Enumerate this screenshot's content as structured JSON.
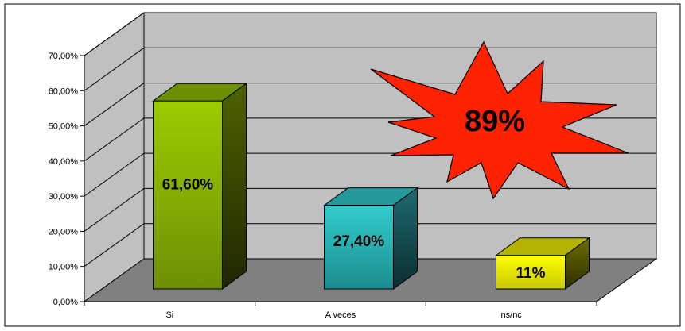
{
  "chart_data": {
    "type": "bar",
    "style": "3d-column",
    "categories": [
      "Si",
      "A veces",
      "ns/nc"
    ],
    "values": [
      61.6,
      27.4,
      11
    ],
    "data_labels": [
      "61,60%",
      "27,40%",
      "11%"
    ],
    "ylim": [
      0,
      70
    ],
    "y_ticks": [
      0,
      10,
      20,
      30,
      40,
      50,
      60,
      70
    ],
    "y_tick_labels": [
      "0,00%",
      "10,00%",
      "20,00%",
      "30,00%",
      "40,00%",
      "50,00%",
      "60,00%",
      "70,00%"
    ],
    "grid": true,
    "colors": [
      "#99CC00",
      "#33CCCC",
      "#FFFF00"
    ],
    "wall_color": "#C0C0C0",
    "floor_color": "#808080",
    "annotation": {
      "text": "89%",
      "shape": "explosion",
      "color": "#FF2200"
    }
  }
}
